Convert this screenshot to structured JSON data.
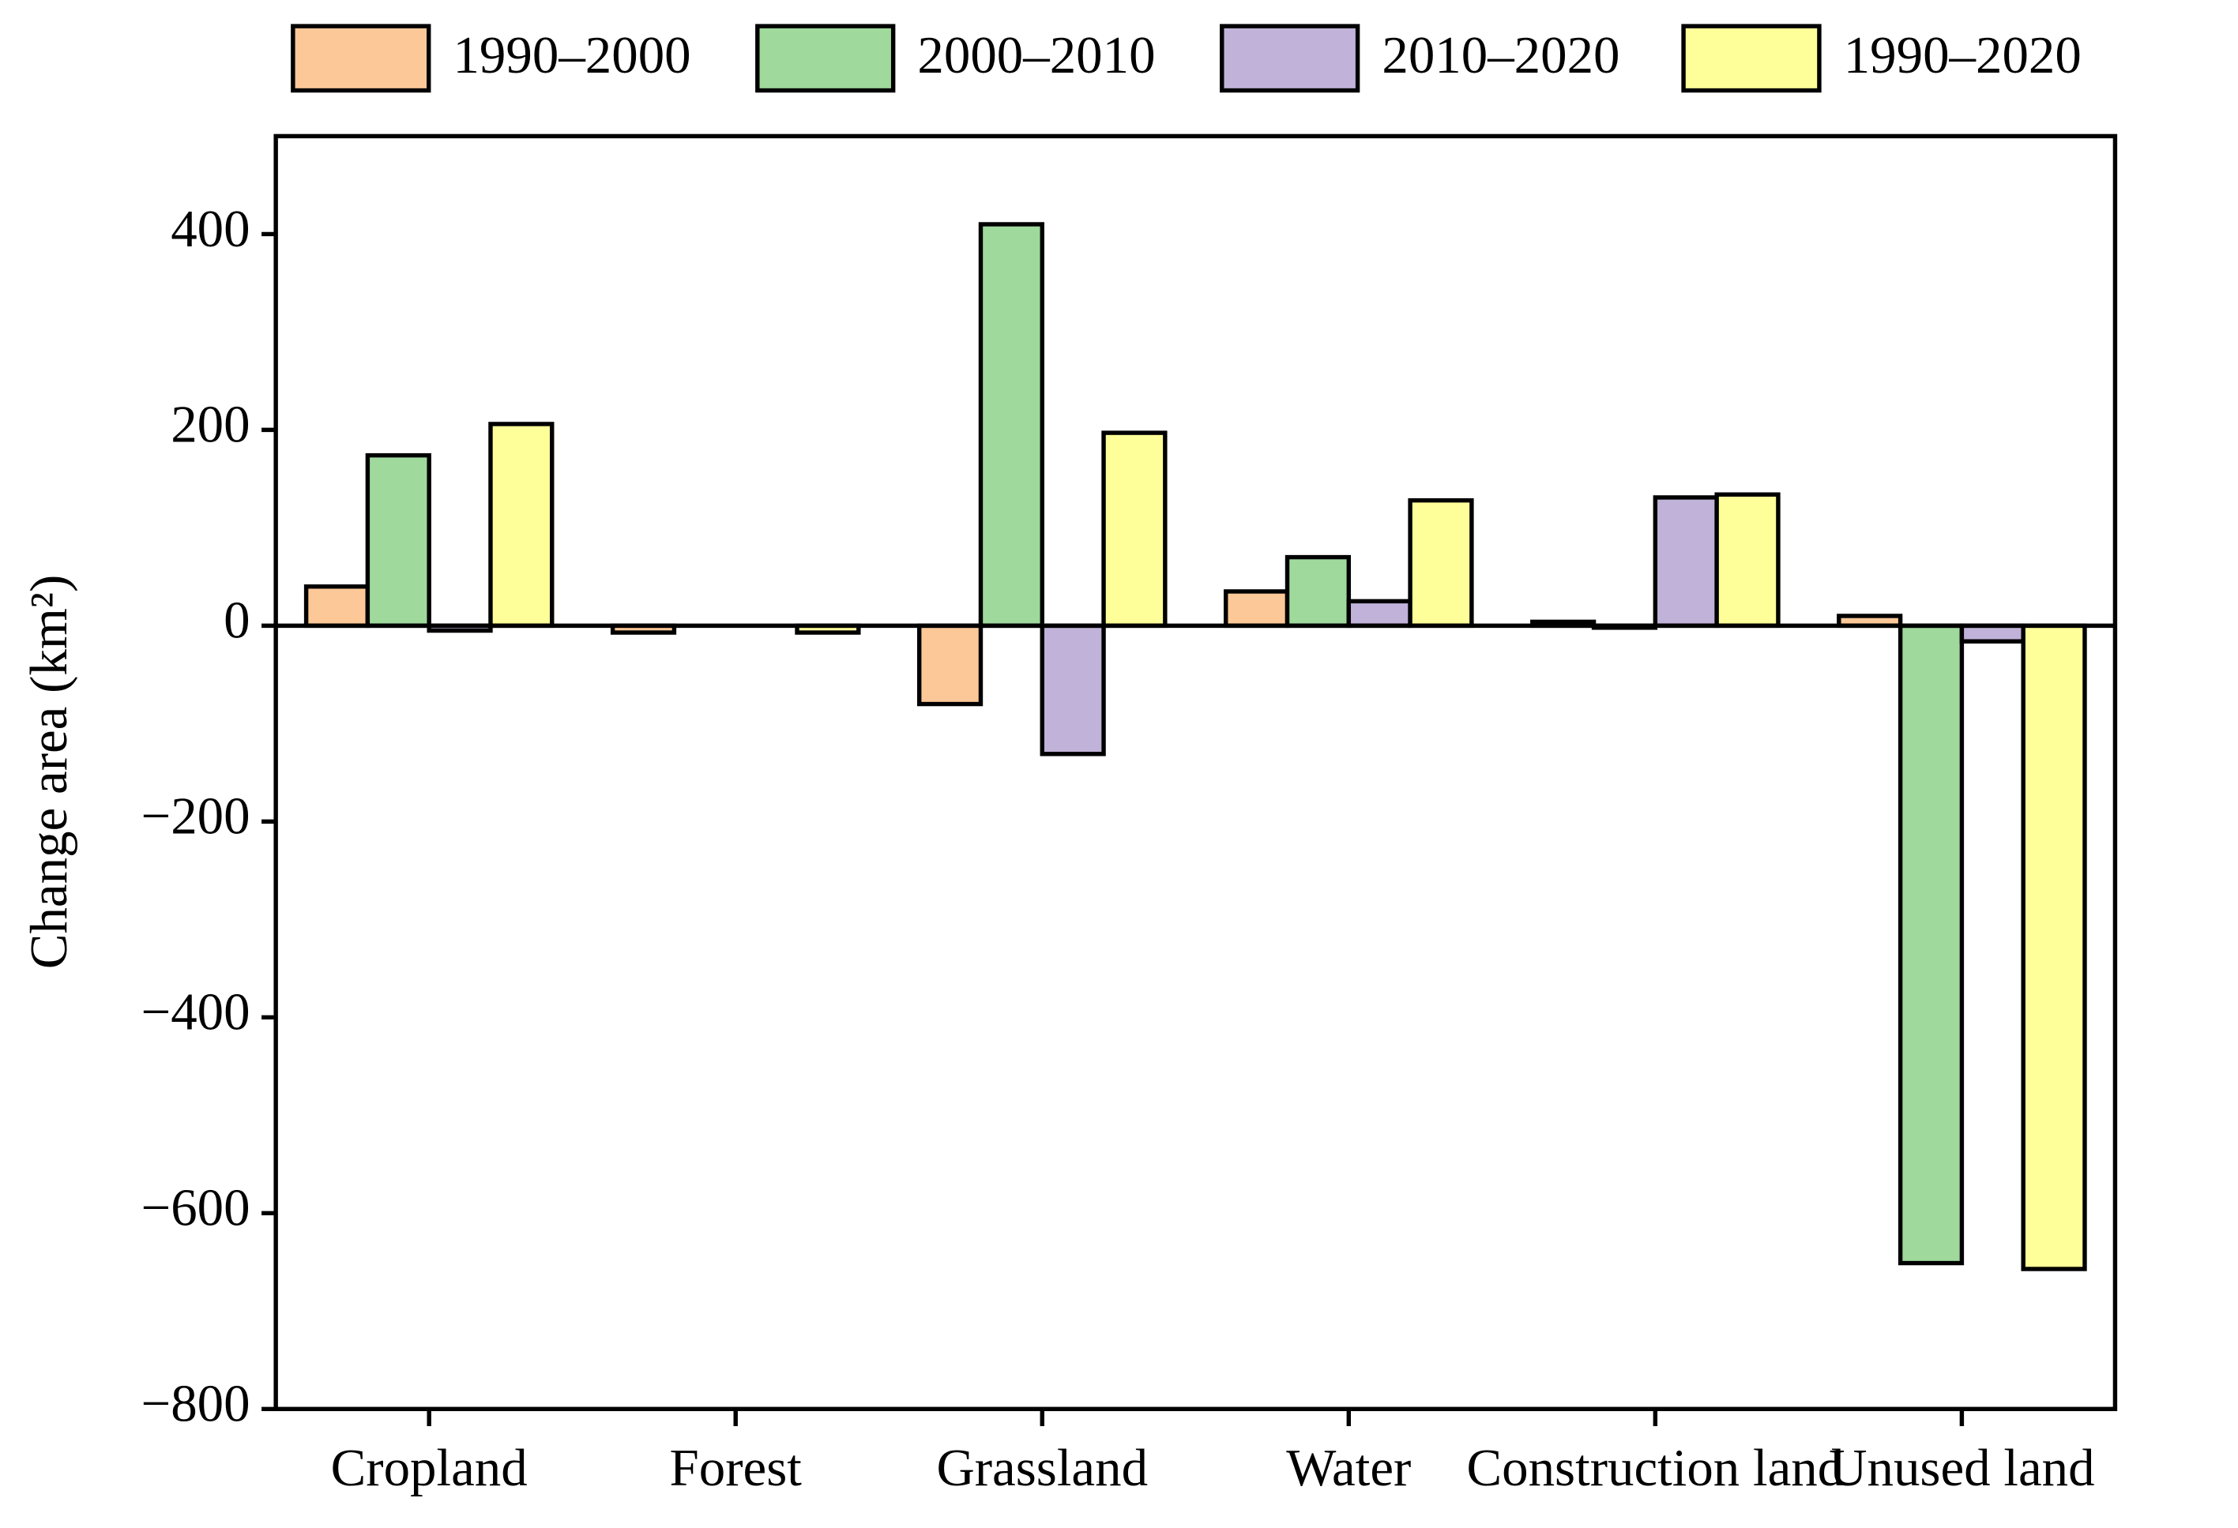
{
  "chart_data": {
    "type": "bar",
    "y_label": "Change area (km²)",
    "categories": [
      "Cropland",
      "Forest",
      "Grassland",
      "Water",
      "Construction land",
      "Unused land"
    ],
    "series": [
      {
        "name": "1990–2000",
        "color": "#fdc897",
        "values": [
          40,
          -7,
          -80,
          35,
          4,
          10
        ]
      },
      {
        "name": "2000–2010",
        "color": "#9fd99c",
        "values": [
          174,
          0,
          410,
          70,
          -2,
          -651
        ]
      },
      {
        "name": "2010–2020",
        "color": "#c0b2d8",
        "values": [
          -5,
          0,
          -131,
          25,
          131,
          -16
        ]
      },
      {
        "name": "1990–2020",
        "color": "#ffff99",
        "values": [
          206,
          -7,
          197,
          128,
          134,
          -657
        ]
      }
    ],
    "ylim": [
      -800,
      500
    ],
    "yticks": [
      {
        "value": -800,
        "label": "−800"
      },
      {
        "value": -600,
        "label": "−600"
      },
      {
        "value": -400,
        "label": "−400"
      },
      {
        "value": -200,
        "label": "−200"
      },
      0,
      200,
      400
    ],
    "legend": "top"
  }
}
